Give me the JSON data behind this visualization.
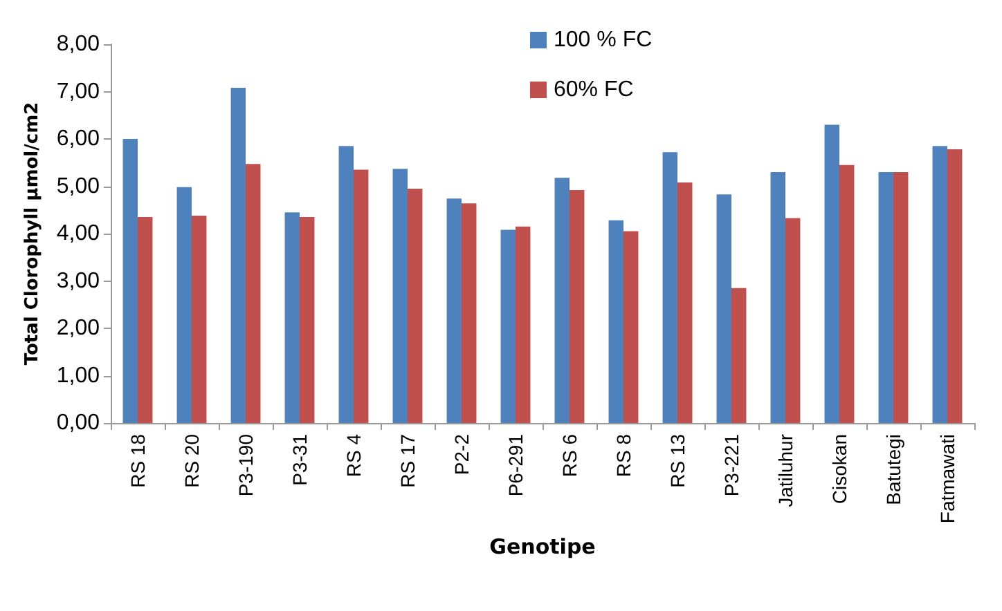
{
  "chart_data": {
    "type": "bar",
    "xlabel": "Genotipe",
    "ylabel": "Total Clorophyll µmol/cm2",
    "categories": [
      "RS 18",
      "RS 20",
      "P3-190",
      "P3-31",
      "RS 4",
      "RS 17",
      "P2-2",
      "P6-291",
      "RS 6",
      "RS 8",
      "RS 13",
      "P3-221",
      "Jatiluhur",
      "Cisokan",
      "Batutegi",
      "Fatmawati"
    ],
    "series": [
      {
        "name": "100 % FC",
        "color": "#4f81bd",
        "values": [
          6.0,
          4.98,
          7.08,
          4.45,
          5.85,
          5.37,
          4.74,
          4.08,
          5.18,
          4.28,
          5.72,
          4.83,
          5.3,
          6.3,
          5.3,
          5.85
        ]
      },
      {
        "name": "60% FC",
        "color": "#c0504d",
        "values": [
          4.35,
          4.38,
          5.47,
          4.35,
          5.35,
          4.95,
          4.64,
          4.15,
          4.92,
          4.05,
          5.08,
          2.85,
          4.33,
          5.45,
          5.3,
          5.78
        ]
      }
    ],
    "ylim": [
      0,
      8
    ],
    "yticks": [
      {
        "value": 0,
        "label": "0,00"
      },
      {
        "value": 1,
        "label": "1,00"
      },
      {
        "value": 2,
        "label": "2,00"
      },
      {
        "value": 3,
        "label": "3,00"
      },
      {
        "value": 4,
        "label": "4,00"
      },
      {
        "value": 5,
        "label": "5,00"
      },
      {
        "value": 6,
        "label": "6,00"
      },
      {
        "value": 7,
        "label": "7,00"
      },
      {
        "value": 8,
        "label": "8,00"
      }
    ],
    "grid": false,
    "legend": "top"
  }
}
